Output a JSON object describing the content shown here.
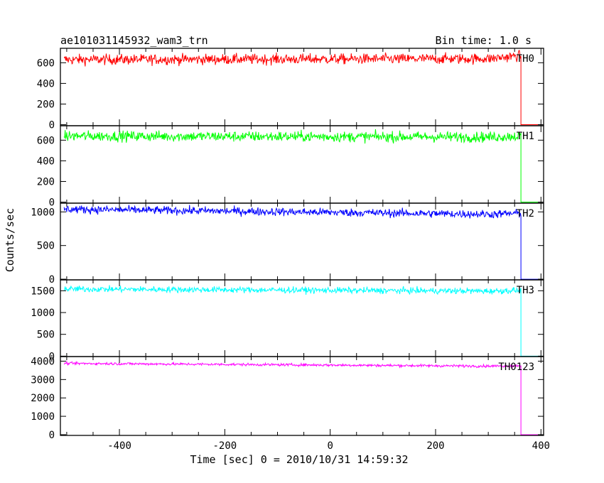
{
  "chart_data": {
    "type": "line",
    "title": "ae101031145932_wam3_trn",
    "subtitle": "Bin time: 1.0 s",
    "xlabel": "Time [sec] 0 = 2010/10/31 14:59:32",
    "ylabel": "Counts/sec",
    "xlim": [
      -512,
      405
    ],
    "x_ticks": [
      -400,
      -200,
      0,
      200,
      400
    ],
    "drop_time": 362,
    "grid": false,
    "panels": [
      {
        "name": "TH0",
        "color": "#ff0000",
        "ylim": [
          -10,
          740
        ],
        "y_ticks": [
          0,
          200,
          400,
          600
        ],
        "level_start": 630,
        "level_end": 640,
        "noise": 25,
        "late_rise": 30
      },
      {
        "name": "TH1",
        "color": "#00ff00",
        "ylim": [
          -10,
          740
        ],
        "y_ticks": [
          0,
          200,
          400,
          600
        ],
        "level_start": 640,
        "level_end": 630,
        "noise": 25,
        "late_rise": 10
      },
      {
        "name": "TH2",
        "color": "#0000ff",
        "ylim": [
          -10,
          1130
        ],
        "y_ticks": [
          0,
          500,
          1000
        ],
        "level_start": 1040,
        "level_end": 960,
        "noise": 30,
        "late_rise": 20
      },
      {
        "name": "TH3",
        "color": "#00ffff",
        "ylim": [
          -10,
          1750
        ],
        "y_ticks": [
          0,
          500,
          1000,
          1500
        ],
        "level_start": 1540,
        "level_end": 1490,
        "noise": 35,
        "late_rise": 20
      },
      {
        "name": "TH0123",
        "color": "#ff00ff",
        "ylim": [
          -40,
          4250
        ],
        "y_ticks": [
          0,
          1000,
          2000,
          3000,
          4000
        ],
        "level_start": 3880,
        "level_end": 3720,
        "noise": 35,
        "late_rise": 40
      }
    ]
  }
}
